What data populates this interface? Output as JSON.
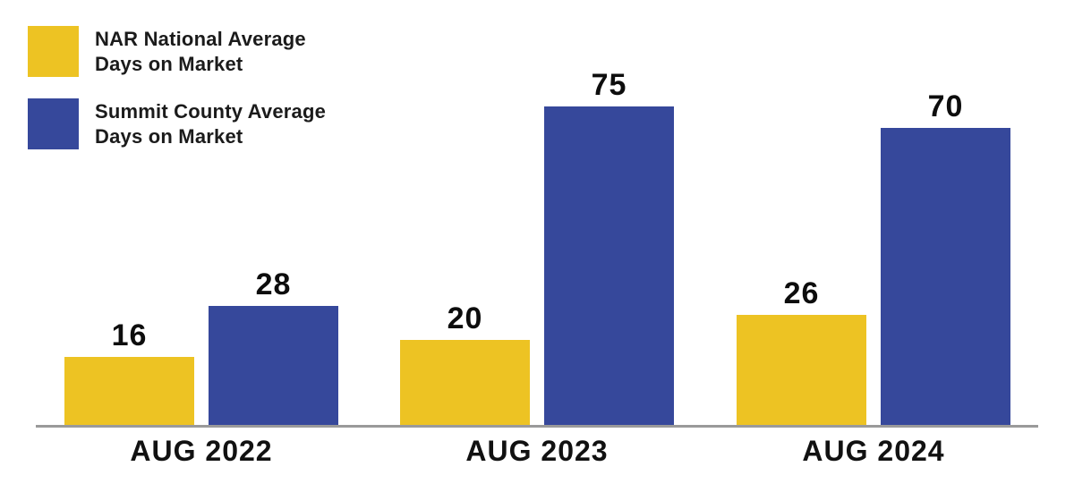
{
  "page": {
    "background": "#ffffff",
    "axis_line_color": "#9a9a9a",
    "text_color": "#111111"
  },
  "legend": {
    "items": [
      {
        "line1": "NAR National Average",
        "line2": "Days on Market",
        "color": "#EDC323"
      },
      {
        "line1": "Summit County Average",
        "line2": "Days on Market",
        "color": "#36489B"
      }
    ]
  },
  "chart_data": {
    "type": "bar",
    "title": "",
    "xlabel": "",
    "ylabel": "",
    "categories": [
      "AUG 2022",
      "AUG 2023",
      "AUG 2024"
    ],
    "series": [
      {
        "name": "NAR National Average Days on Market",
        "color": "#EDC323",
        "values": [
          16,
          20,
          26
        ]
      },
      {
        "name": "Summit County Average Days on Market",
        "color": "#36489B",
        "values": [
          28,
          75,
          70
        ]
      }
    ],
    "ylim": [
      0,
      80
    ],
    "grid": false,
    "value_labels_shown": true,
    "legend_position": "top-left",
    "axis_line_color": "#9a9a9a"
  }
}
